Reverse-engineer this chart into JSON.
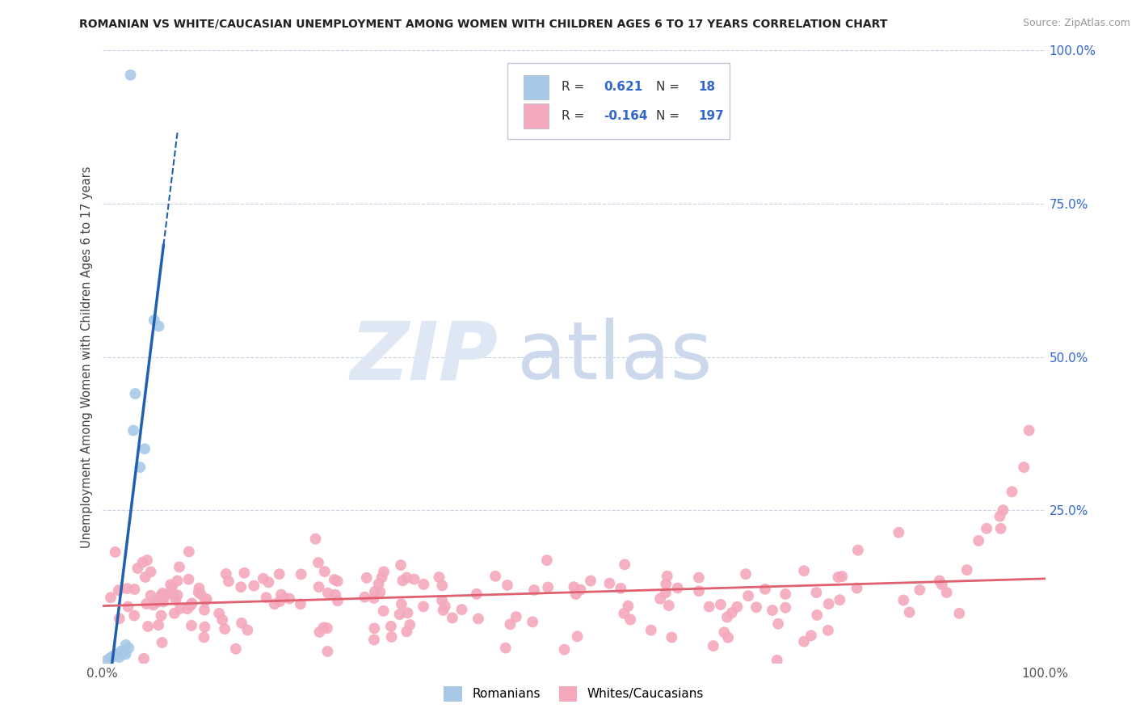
{
  "title": "ROMANIAN VS WHITE/CAUCASIAN UNEMPLOYMENT AMONG WOMEN WITH CHILDREN AGES 6 TO 17 YEARS CORRELATION CHART",
  "source": "Source: ZipAtlas.com",
  "ylabel": "Unemployment Among Women with Children Ages 6 to 17 years",
  "R_romanian": 0.621,
  "N_romanian": 18,
  "R_caucasian": -0.164,
  "N_caucasian": 197,
  "romanian_color": "#a8c8e8",
  "caucasian_color": "#f4a8bc",
  "romanian_line_color": "#2060b0",
  "caucasian_line_color": "#e06070",
  "background_color": "#ffffff",
  "grid_color": "#c8d4e4",
  "legend_R_color": "#3366cc",
  "legend_text_color": "#333333",
  "right_axis_color": "#3366cc",
  "source_color": "#999999",
  "title_color": "#222222",
  "watermark_zip_color": "#dde8f4",
  "watermark_atlas_color": "#ccd8ec"
}
